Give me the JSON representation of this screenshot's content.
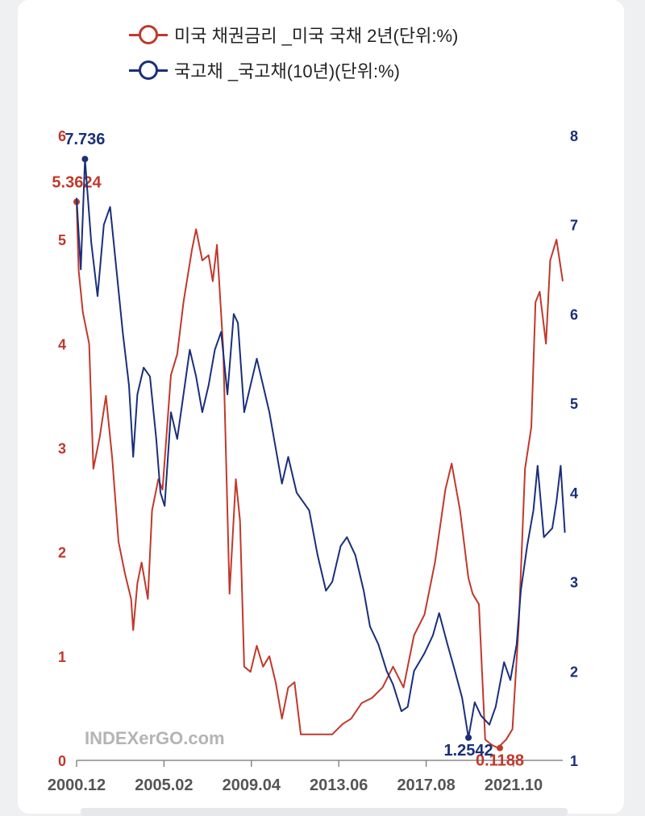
{
  "chart_data": {
    "type": "line",
    "series": [
      {
        "name": "미국 채권금리 _미국 국채 2년(단위:%)",
        "axis": "left",
        "color": "#c0392b",
        "values": [
          [
            2000.9,
            5.36
          ],
          [
            2001.0,
            4.7
          ],
          [
            2001.2,
            4.3
          ],
          [
            2001.5,
            4.0
          ],
          [
            2001.7,
            2.8
          ],
          [
            2002.0,
            3.1
          ],
          [
            2002.3,
            3.5
          ],
          [
            2002.6,
            2.9
          ],
          [
            2002.9,
            2.1
          ],
          [
            2003.2,
            1.8
          ],
          [
            2003.5,
            1.55
          ],
          [
            2003.6,
            1.25
          ],
          [
            2003.8,
            1.7
          ],
          [
            2004.0,
            1.9
          ],
          [
            2004.3,
            1.55
          ],
          [
            2004.5,
            2.4
          ],
          [
            2004.8,
            2.7
          ],
          [
            2005.0,
            2.6
          ],
          [
            2005.4,
            3.7
          ],
          [
            2005.7,
            3.9
          ],
          [
            2006.0,
            4.4
          ],
          [
            2006.4,
            4.9
          ],
          [
            2006.6,
            5.1
          ],
          [
            2006.9,
            4.8
          ],
          [
            2007.2,
            4.85
          ],
          [
            2007.4,
            4.6
          ],
          [
            2007.6,
            4.95
          ],
          [
            2007.9,
            3.95
          ],
          [
            2008.2,
            1.6
          ],
          [
            2008.5,
            2.7
          ],
          [
            2008.7,
            2.3
          ],
          [
            2008.9,
            0.9
          ],
          [
            2009.2,
            0.85
          ],
          [
            2009.5,
            1.1
          ],
          [
            2009.8,
            0.9
          ],
          [
            2010.1,
            1.0
          ],
          [
            2010.4,
            0.75
          ],
          [
            2010.7,
            0.4
          ],
          [
            2011.0,
            0.7
          ],
          [
            2011.3,
            0.75
          ],
          [
            2011.6,
            0.25
          ],
          [
            2012.0,
            0.25
          ],
          [
            2012.6,
            0.25
          ],
          [
            2013.1,
            0.25
          ],
          [
            2013.6,
            0.35
          ],
          [
            2014.0,
            0.4
          ],
          [
            2014.5,
            0.55
          ],
          [
            2015.0,
            0.6
          ],
          [
            2015.5,
            0.7
          ],
          [
            2016.0,
            0.9
          ],
          [
            2016.5,
            0.7
          ],
          [
            2017.0,
            1.2
          ],
          [
            2017.5,
            1.4
          ],
          [
            2018.0,
            1.9
          ],
          [
            2018.5,
            2.6
          ],
          [
            2018.8,
            2.85
          ],
          [
            2019.2,
            2.4
          ],
          [
            2019.6,
            1.75
          ],
          [
            2019.8,
            1.6
          ],
          [
            2020.1,
            1.5
          ],
          [
            2020.4,
            0.2
          ],
          [
            2020.7,
            0.15
          ],
          [
            2021.0,
            0.12
          ],
          [
            2021.4,
            0.2
          ],
          [
            2021.7,
            0.3
          ],
          [
            2022.0,
            1.3
          ],
          [
            2022.3,
            2.8
          ],
          [
            2022.6,
            3.2
          ],
          [
            2022.8,
            4.4
          ],
          [
            2023.0,
            4.5
          ],
          [
            2023.3,
            4.0
          ],
          [
            2023.5,
            4.8
          ],
          [
            2023.8,
            5.0
          ],
          [
            2024.1,
            4.6
          ]
        ],
        "labels": [
          {
            "x": 2000.9,
            "y": 5.3624,
            "text": "5.3624"
          },
          {
            "x": 2021.1,
            "y": 0.1188,
            "text": "0.1188"
          }
        ]
      },
      {
        "name": "국고채 _국고채(10년)(단위:%)",
        "axis": "right",
        "color": "#1a2f7a",
        "values": [
          [
            2000.9,
            7.3
          ],
          [
            2001.1,
            6.5
          ],
          [
            2001.3,
            7.736
          ],
          [
            2001.6,
            6.8
          ],
          [
            2001.9,
            6.2
          ],
          [
            2002.2,
            7.0
          ],
          [
            2002.5,
            7.2
          ],
          [
            2002.8,
            6.5
          ],
          [
            2003.1,
            5.8
          ],
          [
            2003.4,
            5.2
          ],
          [
            2003.6,
            4.4
          ],
          [
            2003.8,
            5.1
          ],
          [
            2004.1,
            5.4
          ],
          [
            2004.4,
            5.3
          ],
          [
            2004.7,
            4.6
          ],
          [
            2004.9,
            4.0
          ],
          [
            2005.1,
            3.85
          ],
          [
            2005.4,
            4.9
          ],
          [
            2005.7,
            4.6
          ],
          [
            2006.0,
            5.1
          ],
          [
            2006.3,
            5.6
          ],
          [
            2006.6,
            5.3
          ],
          [
            2006.9,
            4.9
          ],
          [
            2007.2,
            5.2
          ],
          [
            2007.5,
            5.6
          ],
          [
            2007.8,
            5.8
          ],
          [
            2008.1,
            5.1
          ],
          [
            2008.4,
            6.0
          ],
          [
            2008.6,
            5.9
          ],
          [
            2008.9,
            4.9
          ],
          [
            2009.2,
            5.2
          ],
          [
            2009.5,
            5.5
          ],
          [
            2009.8,
            5.2
          ],
          [
            2010.1,
            4.9
          ],
          [
            2010.4,
            4.5
          ],
          [
            2010.7,
            4.1
          ],
          [
            2011.0,
            4.4
          ],
          [
            2011.4,
            4.0
          ],
          [
            2011.7,
            3.9
          ],
          [
            2012.0,
            3.8
          ],
          [
            2012.4,
            3.3
          ],
          [
            2012.8,
            2.9
          ],
          [
            2013.1,
            3.0
          ],
          [
            2013.5,
            3.4
          ],
          [
            2013.8,
            3.5
          ],
          [
            2014.2,
            3.3
          ],
          [
            2014.6,
            2.9
          ],
          [
            2014.9,
            2.5
          ],
          [
            2015.3,
            2.3
          ],
          [
            2015.7,
            2.0
          ],
          [
            2016.0,
            1.85
          ],
          [
            2016.4,
            1.55
          ],
          [
            2016.7,
            1.6
          ],
          [
            2017.0,
            2.0
          ],
          [
            2017.5,
            2.2
          ],
          [
            2017.9,
            2.4
          ],
          [
            2018.2,
            2.65
          ],
          [
            2018.6,
            2.3
          ],
          [
            2018.9,
            2.05
          ],
          [
            2019.3,
            1.7
          ],
          [
            2019.6,
            1.254
          ],
          [
            2019.9,
            1.65
          ],
          [
            2020.2,
            1.5
          ],
          [
            2020.6,
            1.4
          ],
          [
            2020.9,
            1.6
          ],
          [
            2021.3,
            2.1
          ],
          [
            2021.6,
            1.9
          ],
          [
            2021.9,
            2.3
          ],
          [
            2022.1,
            2.9
          ],
          [
            2022.4,
            3.4
          ],
          [
            2022.7,
            3.8
          ],
          [
            2022.9,
            4.3
          ],
          [
            2023.2,
            3.5
          ],
          [
            2023.6,
            3.6
          ],
          [
            2023.8,
            3.9
          ],
          [
            2024.0,
            4.3
          ],
          [
            2024.2,
            3.55
          ]
        ],
        "labels": [
          {
            "x": 2001.3,
            "y": 7.736,
            "text": "7.736"
          },
          {
            "x": 2019.6,
            "y": 1.2542,
            "text": "1.2542"
          }
        ]
      }
    ],
    "x_ticks": [
      "2000.12",
      "2005.02",
      "2009.04",
      "2013.06",
      "2017.08",
      "2021.10"
    ],
    "y_left_ticks": [
      "0",
      "1",
      "2",
      "3",
      "4",
      "5",
      "6"
    ],
    "y_right_ticks": [
      "1",
      "2",
      "3",
      "4",
      "5",
      "6",
      "7",
      "8"
    ],
    "xlim": [
      2000.9,
      2024.1
    ],
    "ylim_left": [
      0,
      6
    ],
    "ylim_right": [
      1,
      8
    ],
    "grid": false,
    "legend_placement": "top-center"
  },
  "legend": [
    {
      "label": "미국 채권금리 _미국 국채 2년(단위:%)",
      "color": "#c0392b"
    },
    {
      "label": "국고채 _국고채(10년)(단위:%)",
      "color": "#1a2f7a"
    }
  ],
  "watermark": "INDEXerGO.com"
}
